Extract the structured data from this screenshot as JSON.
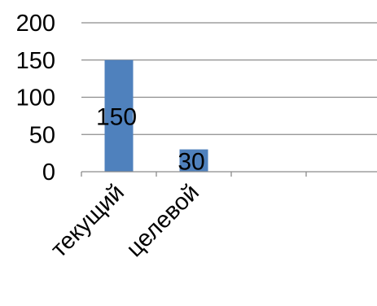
{
  "chart_data": {
    "type": "bar",
    "title": "",
    "xlabel": "",
    "ylabel": "",
    "categories": [
      "текущий",
      "целевой",
      "",
      ""
    ],
    "series": [
      {
        "values": [
          150,
          30,
          null,
          null
        ],
        "color": "#4f81bd"
      }
    ],
    "data_labels": [
      "150",
      "30"
    ],
    "ylim": [
      0,
      200
    ],
    "y_ticks": [
      0,
      50,
      100,
      150,
      200
    ],
    "y_tick_labels": [
      "0",
      "50",
      "100",
      "150",
      "200"
    ],
    "grid": "horizontal",
    "legend": "none"
  }
}
